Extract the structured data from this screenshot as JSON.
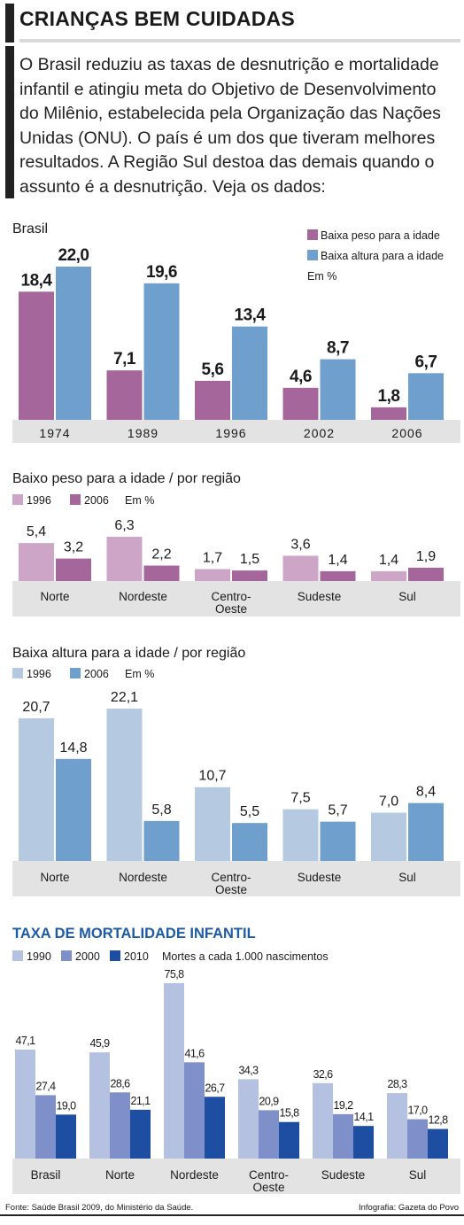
{
  "header": {
    "title": "CRIANÇAS BEM CUIDADAS",
    "intro": "O Brasil reduziu as taxas de desnutrição e mortalidade infantil e atingiu meta do Objetivo de Desenvolvimento do Milênio, estabelecida pela Organização das Nações Unidas (ONU). O país é um dos que tiveram melhores resultados. A Região Sul destoa das demais quando o assunto é a desnutrição. Veja os dados:"
  },
  "colors": {
    "purple_dark": "#a5679b",
    "purple_light": "#cda5c6",
    "blue_mid": "#6f9fcc",
    "blue_light": "#b5cae1",
    "mort_1990": "#b4c1e0",
    "mort_2000": "#7e8fca",
    "mort_2010": "#1e4ea1",
    "panel_bg": "#e3e3e3",
    "title_blue": "#1e5ba6"
  },
  "chart_data": [
    {
      "type": "bar",
      "title": "Brasil",
      "categories": [
        "1974",
        "1989",
        "1996",
        "2002",
        "2006"
      ],
      "series": [
        {
          "name": "Baixa peso para a idade",
          "values": [
            18.4,
            7.1,
            5.6,
            4.6,
            1.8
          ],
          "labels": [
            "18,4",
            "7,1",
            "5,6",
            "4,6",
            "1,8"
          ]
        },
        {
          "name": "Baixa altura para a idade",
          "values": [
            22.0,
            19.6,
            13.4,
            8.7,
            6.7
          ],
          "labels": [
            "22,0",
            "19,6",
            "13,4",
            "8,7",
            "6,7"
          ]
        }
      ],
      "unit": "Em %",
      "ylim": [
        0,
        22
      ]
    },
    {
      "type": "bar",
      "title": "Baixo peso para a idade / por região",
      "categories": [
        "Norte",
        "Nordeste",
        "Centro-Oeste",
        "Sudeste",
        "Sul"
      ],
      "category_labels": [
        [
          "Norte"
        ],
        [
          "Nordeste"
        ],
        [
          "Centro-",
          "Oeste"
        ],
        [
          "Sudeste"
        ],
        [
          "Sul"
        ]
      ],
      "series": [
        {
          "name": "1996",
          "values": [
            5.4,
            6.3,
            1.7,
            3.6,
            1.4
          ],
          "labels": [
            "5,4",
            "6,3",
            "1,7",
            "3,6",
            "1,4"
          ]
        },
        {
          "name": "2006",
          "values": [
            3.2,
            2.2,
            1.5,
            1.4,
            1.9
          ],
          "labels": [
            "3,2",
            "2,2",
            "1,5",
            "1,4",
            "1,9"
          ]
        }
      ],
      "unit": "Em %",
      "ylim": [
        0,
        6.3
      ]
    },
    {
      "type": "bar",
      "title": "Baixa altura para a idade / por região",
      "categories": [
        "Norte",
        "Nordeste",
        "Centro-Oeste",
        "Sudeste",
        "Sul"
      ],
      "category_labels": [
        [
          "Norte"
        ],
        [
          "Nordeste"
        ],
        [
          "Centro-",
          "Oeste"
        ],
        [
          "Sudeste"
        ],
        [
          "Sul"
        ]
      ],
      "series": [
        {
          "name": "1996",
          "values": [
            20.7,
            22.1,
            10.7,
            7.5,
            7.0
          ],
          "labels": [
            "20,7",
            "22,1",
            "10,7",
            "7,5",
            "7,0"
          ]
        },
        {
          "name": "2006",
          "values": [
            14.8,
            5.8,
            5.5,
            5.7,
            8.4
          ],
          "labels": [
            "14,8",
            "5,8",
            "5,5",
            "5,7",
            "8,4"
          ]
        }
      ],
      "unit": "Em %",
      "ylim": [
        0,
        22.1
      ]
    },
    {
      "type": "bar",
      "title": "TAXA DE MORTALIDADE INFANTIL",
      "categories": [
        "Brasil",
        "Norte",
        "Nordeste",
        "Centro-Oeste",
        "Sudeste",
        "Sul"
      ],
      "category_labels": [
        [
          "Brasil"
        ],
        [
          "Norte"
        ],
        [
          "Nordeste"
        ],
        [
          "Centro-",
          "Oeste"
        ],
        [
          "Sudeste"
        ],
        [
          "Sul"
        ]
      ],
      "series": [
        {
          "name": "1990",
          "values": [
            47.1,
            45.9,
            75.8,
            34.3,
            32.6,
            28.3
          ],
          "labels": [
            "47,1",
            "45,9",
            "75,8",
            "34,3",
            "32,6",
            "28,3"
          ]
        },
        {
          "name": "2000",
          "values": [
            27.4,
            28.6,
            41.6,
            20.9,
            19.2,
            17.0
          ],
          "labels": [
            "27,4",
            "28,6",
            "41,6",
            "20,9",
            "19,2",
            "17,0"
          ]
        },
        {
          "name": "2010",
          "values": [
            19.0,
            21.1,
            26.7,
            15.8,
            14.1,
            12.8
          ],
          "labels": [
            "19,0",
            "21,1",
            "26,7",
            "15,8",
            "14,1",
            "12,8"
          ]
        }
      ],
      "unit": "Mortes a cada 1.000 nascimentos",
      "ylim": [
        0,
        75.8
      ]
    }
  ],
  "footer": {
    "source": "Fonte: Saúde Brasil 2009, do Ministério da Saúde.",
    "credit": "Infografia: Gazeta do Povo"
  }
}
